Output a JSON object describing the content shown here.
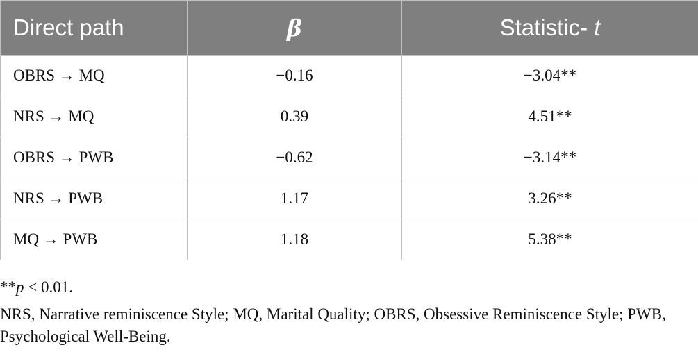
{
  "table": {
    "headers": {
      "path": "Direct path",
      "beta": "β",
      "stat_prefix": "Statistic- ",
      "stat_var": "t"
    },
    "rows": [
      {
        "path": "OBRS → MQ",
        "beta": "−0.16",
        "t": "−3.04**"
      },
      {
        "path": "NRS → MQ",
        "beta": "0.39",
        "t": "4.51**"
      },
      {
        "path": "OBRS → PWB",
        "beta": "−0.62",
        "t": "−3.14**"
      },
      {
        "path": "NRS → PWB",
        "beta": "1.17",
        "t": "3.26**"
      },
      {
        "path": "MQ → PWB",
        "beta": "1.18",
        "t": "5.38**"
      }
    ]
  },
  "footnotes": {
    "sig_stars": "**",
    "sig_p": "p",
    "sig_rest": " < 0.01.",
    "abbreviations": "NRS, Narrative reminiscence Style; MQ, Marital Quality; OBRS, Obsessive Reminiscence Style; PWB, Psychological Well-Being."
  }
}
